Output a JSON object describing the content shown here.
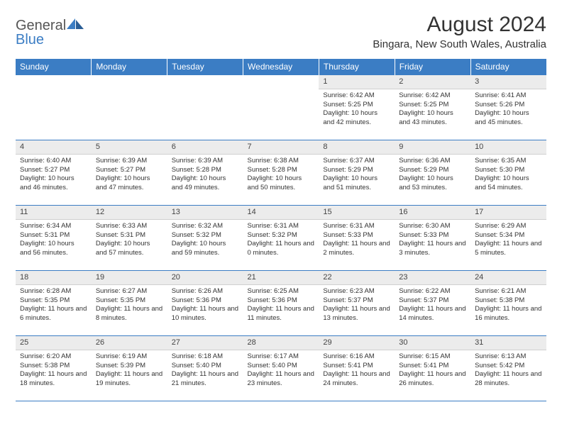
{
  "logo": {
    "text1": "General",
    "text2": "Blue"
  },
  "title": "August 2024",
  "location": "Bingara, New South Wales, Australia",
  "headers": [
    "Sunday",
    "Monday",
    "Tuesday",
    "Wednesday",
    "Thursday",
    "Friday",
    "Saturday"
  ],
  "colors": {
    "header_bg": "#3b7dc4",
    "header_fg": "#ffffff",
    "daynum_bg": "#ececec",
    "border": "#3b7dc4",
    "logo_blue": "#3b7dc4"
  },
  "weeks": [
    [
      null,
      null,
      null,
      null,
      {
        "n": "1",
        "sr": "6:42 AM",
        "ss": "5:25 PM",
        "d": "10 hours and 42 minutes."
      },
      {
        "n": "2",
        "sr": "6:42 AM",
        "ss": "5:25 PM",
        "d": "10 hours and 43 minutes."
      },
      {
        "n": "3",
        "sr": "6:41 AM",
        "ss": "5:26 PM",
        "d": "10 hours and 45 minutes."
      }
    ],
    [
      {
        "n": "4",
        "sr": "6:40 AM",
        "ss": "5:27 PM",
        "d": "10 hours and 46 minutes."
      },
      {
        "n": "5",
        "sr": "6:39 AM",
        "ss": "5:27 PM",
        "d": "10 hours and 47 minutes."
      },
      {
        "n": "6",
        "sr": "6:39 AM",
        "ss": "5:28 PM",
        "d": "10 hours and 49 minutes."
      },
      {
        "n": "7",
        "sr": "6:38 AM",
        "ss": "5:28 PM",
        "d": "10 hours and 50 minutes."
      },
      {
        "n": "8",
        "sr": "6:37 AM",
        "ss": "5:29 PM",
        "d": "10 hours and 51 minutes."
      },
      {
        "n": "9",
        "sr": "6:36 AM",
        "ss": "5:29 PM",
        "d": "10 hours and 53 minutes."
      },
      {
        "n": "10",
        "sr": "6:35 AM",
        "ss": "5:30 PM",
        "d": "10 hours and 54 minutes."
      }
    ],
    [
      {
        "n": "11",
        "sr": "6:34 AM",
        "ss": "5:31 PM",
        "d": "10 hours and 56 minutes."
      },
      {
        "n": "12",
        "sr": "6:33 AM",
        "ss": "5:31 PM",
        "d": "10 hours and 57 minutes."
      },
      {
        "n": "13",
        "sr": "6:32 AM",
        "ss": "5:32 PM",
        "d": "10 hours and 59 minutes."
      },
      {
        "n": "14",
        "sr": "6:31 AM",
        "ss": "5:32 PM",
        "d": "11 hours and 0 minutes."
      },
      {
        "n": "15",
        "sr": "6:31 AM",
        "ss": "5:33 PM",
        "d": "11 hours and 2 minutes."
      },
      {
        "n": "16",
        "sr": "6:30 AM",
        "ss": "5:33 PM",
        "d": "11 hours and 3 minutes."
      },
      {
        "n": "17",
        "sr": "6:29 AM",
        "ss": "5:34 PM",
        "d": "11 hours and 5 minutes."
      }
    ],
    [
      {
        "n": "18",
        "sr": "6:28 AM",
        "ss": "5:35 PM",
        "d": "11 hours and 6 minutes."
      },
      {
        "n": "19",
        "sr": "6:27 AM",
        "ss": "5:35 PM",
        "d": "11 hours and 8 minutes."
      },
      {
        "n": "20",
        "sr": "6:26 AM",
        "ss": "5:36 PM",
        "d": "11 hours and 10 minutes."
      },
      {
        "n": "21",
        "sr": "6:25 AM",
        "ss": "5:36 PM",
        "d": "11 hours and 11 minutes."
      },
      {
        "n": "22",
        "sr": "6:23 AM",
        "ss": "5:37 PM",
        "d": "11 hours and 13 minutes."
      },
      {
        "n": "23",
        "sr": "6:22 AM",
        "ss": "5:37 PM",
        "d": "11 hours and 14 minutes."
      },
      {
        "n": "24",
        "sr": "6:21 AM",
        "ss": "5:38 PM",
        "d": "11 hours and 16 minutes."
      }
    ],
    [
      {
        "n": "25",
        "sr": "6:20 AM",
        "ss": "5:38 PM",
        "d": "11 hours and 18 minutes."
      },
      {
        "n": "26",
        "sr": "6:19 AM",
        "ss": "5:39 PM",
        "d": "11 hours and 19 minutes."
      },
      {
        "n": "27",
        "sr": "6:18 AM",
        "ss": "5:40 PM",
        "d": "11 hours and 21 minutes."
      },
      {
        "n": "28",
        "sr": "6:17 AM",
        "ss": "5:40 PM",
        "d": "11 hours and 23 minutes."
      },
      {
        "n": "29",
        "sr": "6:16 AM",
        "ss": "5:41 PM",
        "d": "11 hours and 24 minutes."
      },
      {
        "n": "30",
        "sr": "6:15 AM",
        "ss": "5:41 PM",
        "d": "11 hours and 26 minutes."
      },
      {
        "n": "31",
        "sr": "6:13 AM",
        "ss": "5:42 PM",
        "d": "11 hours and 28 minutes."
      }
    ]
  ]
}
